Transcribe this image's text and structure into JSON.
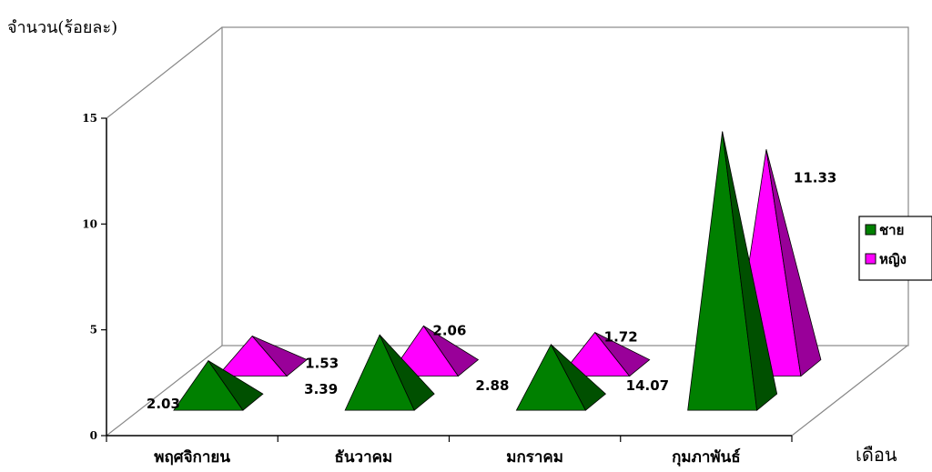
{
  "chart_data": {
    "type": "bar",
    "style": "3d-pyramid",
    "title": "",
    "ylabel": "จำนวน(ร้อยละ)",
    "xlabel": "เดือน",
    "ylim": [
      0,
      15
    ],
    "yticks": [
      0,
      5,
      10,
      15
    ],
    "categories": [
      "พฤศจิกายน",
      "ธันวาคม",
      "มกราคม",
      "กุมภาพันธ์"
    ],
    "series": [
      {
        "name": "ชาย",
        "color": "#008000",
        "values": [
          2.03,
          3.39,
          2.88,
          14.07
        ]
      },
      {
        "name": "หญิง",
        "color": "#ff00ff",
        "values": [
          1.53,
          2.06,
          1.72,
          11.33
        ]
      }
    ],
    "legend": "right",
    "grid": false
  }
}
